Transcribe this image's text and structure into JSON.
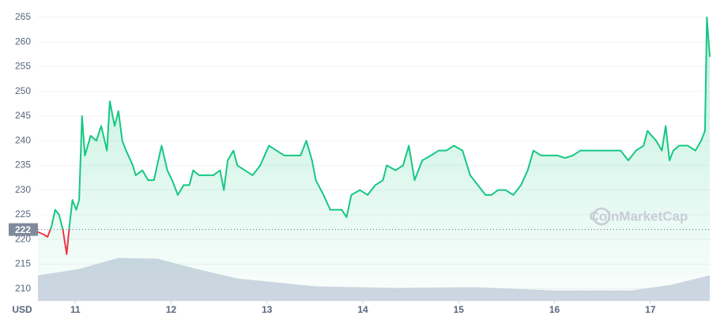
{
  "chart_data": {
    "type": "line",
    "x": [
      10.61,
      10.67,
      10.71,
      10.75,
      10.79,
      10.83,
      10.87,
      10.91,
      10.94,
      10.97,
      11.01,
      11.04,
      11.07,
      11.1,
      11.16,
      11.22,
      11.27,
      11.33,
      11.36,
      11.41,
      11.45,
      11.49,
      11.53,
      11.6,
      11.63,
      11.7,
      11.76,
      11.82,
      11.9,
      11.96,
      12.01,
      12.07,
      12.13,
      12.19,
      12.23,
      12.29,
      12.36,
      12.44,
      12.51,
      12.55,
      12.59,
      12.65,
      12.69,
      12.77,
      12.85,
      12.93,
      13.02,
      13.1,
      13.18,
      13.26,
      13.35,
      13.41,
      13.47,
      13.51,
      13.59,
      13.66,
      13.72,
      13.78,
      13.83,
      13.88,
      13.97,
      14.05,
      14.13,
      14.21,
      14.25,
      14.34,
      14.42,
      14.48,
      14.54,
      14.62,
      14.71,
      14.79,
      14.87,
      14.95,
      15.04,
      15.12,
      15.2,
      15.28,
      15.34,
      15.41,
      15.49,
      15.57,
      15.65,
      15.72,
      15.78,
      15.86,
      15.94,
      16.03,
      16.11,
      16.19,
      16.27,
      16.36,
      16.44,
      16.52,
      16.6,
      16.69,
      16.77,
      16.85,
      16.93,
      16.97,
      17.06,
      17.12,
      17.16,
      17.2,
      17.24,
      17.3,
      17.39,
      17.47,
      17.53,
      17.57,
      17.59,
      17.62
    ],
    "values": [
      221.5,
      221,
      220.5,
      222.5,
      226,
      225,
      222,
      217,
      223,
      228,
      226,
      228,
      245,
      237,
      241,
      240,
      243,
      238,
      248,
      243,
      246,
      240,
      238,
      235,
      233,
      234,
      232,
      232,
      239,
      234,
      232,
      229,
      231,
      231,
      234,
      233,
      233,
      233,
      234,
      230,
      236,
      238,
      235,
      234,
      233,
      235,
      239,
      238,
      237,
      237,
      237,
      240,
      236,
      232,
      229,
      226,
      226,
      226,
      224.5,
      229,
      230,
      229,
      231,
      232,
      235,
      234,
      235,
      239,
      232,
      236,
      237,
      238,
      238,
      239,
      238,
      233,
      231,
      229,
      229,
      230,
      230,
      229,
      231,
      234,
      238,
      237,
      237,
      237,
      236.5,
      237,
      238,
      238,
      238,
      238,
      238,
      238,
      236,
      238,
      239,
      242,
      240,
      238,
      243,
      236,
      238,
      239,
      239,
      238,
      240,
      242,
      265,
      257
    ],
    "color": "#16c784",
    "down_color": "#ea3943",
    "baseline": 222,
    "xlim": [
      10.61,
      17.62
    ],
    "xticks": [
      11,
      12,
      13,
      14,
      15,
      16,
      17
    ],
    "ylim": [
      207.6,
      267
    ],
    "yticks": [
      210,
      215,
      220,
      225,
      230,
      235,
      240,
      245,
      250,
      255,
      260,
      265
    ],
    "grid": true,
    "y_unit": "USD",
    "watermark": "CoinMarketCap",
    "volume": {
      "x": [
        10.61,
        11.04,
        11.45,
        11.86,
        12.27,
        12.69,
        13.51,
        14.34,
        15.16,
        15.98,
        16.81,
        17.22,
        17.62
      ],
      "values": [
        32,
        40,
        54,
        53,
        40,
        28,
        18,
        16,
        17,
        13,
        13,
        20,
        32
      ],
      "vlim": [
        0,
        100
      ],
      "color": "#d1d7e3"
    }
  }
}
